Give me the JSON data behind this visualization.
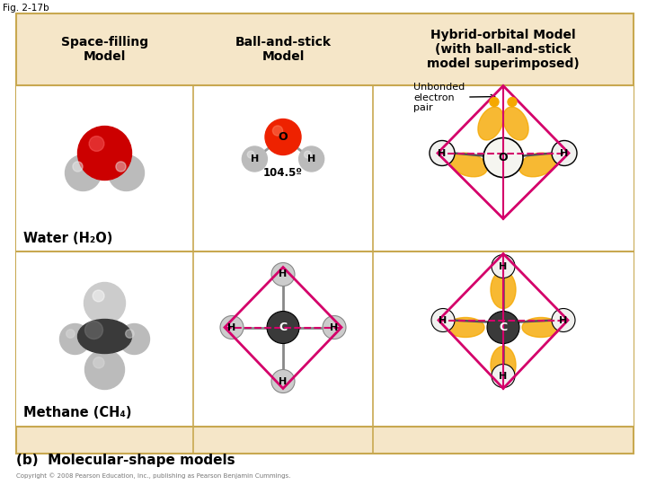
{
  "fig_label": "Fig. 2-17b",
  "bg_color": "#FFFFFF",
  "header_bg": "#F5E6C8",
  "border_color": "#C8A850",
  "header_texts": [
    "Space-filling\nModel",
    "Ball-and-stick\nModel",
    "Hybrid-orbital Model\n(with ball-and-stick\nmodel superimposed)"
  ],
  "water_label": "Water (H₂O)",
  "methane_label": "Methane (CH₄)",
  "bottom_label": "(b)  Molecular-shape models",
  "copyright": "Copyright © 2008 Pearson Education, Inc., publishing as Pearson Benjamin Cummings.",
  "angle_label": "104.5º",
  "unbonded_label": "Unbonded\nelectron\npair",
  "pink": "#D4006A",
  "orange_fill": "#F5A800",
  "red_oxygen": "#CC0000",
  "dark_carbon": "#444444",
  "gray_h": "#AAAAAA",
  "light_gray_h": "#CCCCCC"
}
